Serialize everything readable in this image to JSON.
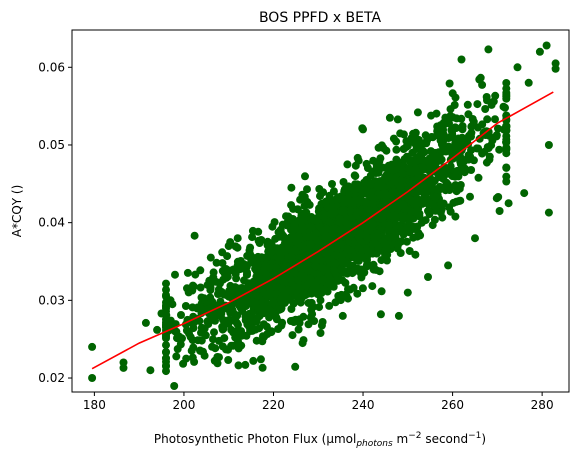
{
  "chart_data": {
    "type": "scatter",
    "title": "BOS PPFD x BETA",
    "xlabel": {
      "prefix": "Photosynthetic Photon Flux (μmol",
      "sub": "photons",
      "mid1": " m",
      "sup1": "−2",
      "mid2": " second",
      "sup2": "−1",
      "suffix": ")"
    },
    "ylabel": "A*CQY ()",
    "xlim": [
      175,
      286
    ],
    "ylim": [
      0.0182,
      0.0648
    ],
    "xticks": [
      180,
      200,
      220,
      240,
      260,
      280
    ],
    "yticks": [
      0.02,
      0.03,
      0.04,
      0.05,
      0.06
    ],
    "ytick_labels": [
      "0.02",
      "0.03",
      "0.04",
      "0.05",
      "0.06"
    ],
    "colors": {
      "scatter": "#006400",
      "fit": "#ff0000"
    },
    "grid": false,
    "scatter": {
      "name": "",
      "cloud": {
        "x_range": [
          196,
          272
        ],
        "fit_band_halfwidth_low": 0.0045,
        "fit_band_halfwidth_high": 0.0058
      },
      "points": [
        {
          "x": 179.5,
          "y": 0.024
        },
        {
          "x": 179.5,
          "y": 0.02
        },
        {
          "x": 186.5,
          "y": 0.022
        },
        {
          "x": 186.5,
          "y": 0.0213
        },
        {
          "x": 191.5,
          "y": 0.0271
        },
        {
          "x": 192.5,
          "y": 0.021
        },
        {
          "x": 194.0,
          "y": 0.0262
        },
        {
          "x": 195.0,
          "y": 0.0283
        },
        {
          "x": 197.0,
          "y": 0.03
        },
        {
          "x": 198.0,
          "y": 0.0333
        },
        {
          "x": 199.0,
          "y": 0.025
        },
        {
          "x": 200.5,
          "y": 0.0225
        },
        {
          "x": 202.0,
          "y": 0.0319
        },
        {
          "x": 206.5,
          "y": 0.025
        },
        {
          "x": 207.5,
          "y": 0.0219
        },
        {
          "x": 206.0,
          "y": 0.0355
        },
        {
          "x": 210.0,
          "y": 0.037
        },
        {
          "x": 212.0,
          "y": 0.038
        },
        {
          "x": 215.5,
          "y": 0.0222
        },
        {
          "x": 224.0,
          "y": 0.0445
        },
        {
          "x": 226.5,
          "y": 0.0245
        },
        {
          "x": 230.5,
          "y": 0.0258
        },
        {
          "x": 236.5,
          "y": 0.0475
        },
        {
          "x": 240.0,
          "y": 0.052
        },
        {
          "x": 244.0,
          "y": 0.0282
        },
        {
          "x": 246.0,
          "y": 0.0535
        },
        {
          "x": 248.0,
          "y": 0.028
        },
        {
          "x": 250.0,
          "y": 0.031
        },
        {
          "x": 254.5,
          "y": 0.033
        },
        {
          "x": 259.0,
          "y": 0.0345
        },
        {
          "x": 262.0,
          "y": 0.061
        },
        {
          "x": 265.0,
          "y": 0.038
        },
        {
          "x": 268.0,
          "y": 0.0623
        },
        {
          "x": 270.5,
          "y": 0.0415
        },
        {
          "x": 272.5,
          "y": 0.0425
        },
        {
          "x": 274.5,
          "y": 0.06
        },
        {
          "x": 276.0,
          "y": 0.0438
        },
        {
          "x": 277.0,
          "y": 0.058
        },
        {
          "x": 279.5,
          "y": 0.062
        },
        {
          "x": 281.0,
          "y": 0.0628
        },
        {
          "x": 281.5,
          "y": 0.05
        },
        {
          "x": 281.5,
          "y": 0.0413
        },
        {
          "x": 283.0,
          "y": 0.0605
        },
        {
          "x": 283.0,
          "y": 0.0598
        }
      ]
    },
    "fit": {
      "name": "",
      "x": [
        179.5,
        190,
        200,
        210,
        220,
        230,
        240,
        250,
        260,
        270,
        282.5
      ],
      "y": [
        0.0212,
        0.0245,
        0.027,
        0.0297,
        0.0328,
        0.0363,
        0.04,
        0.044,
        0.0483,
        0.0528,
        0.0568
      ]
    }
  }
}
